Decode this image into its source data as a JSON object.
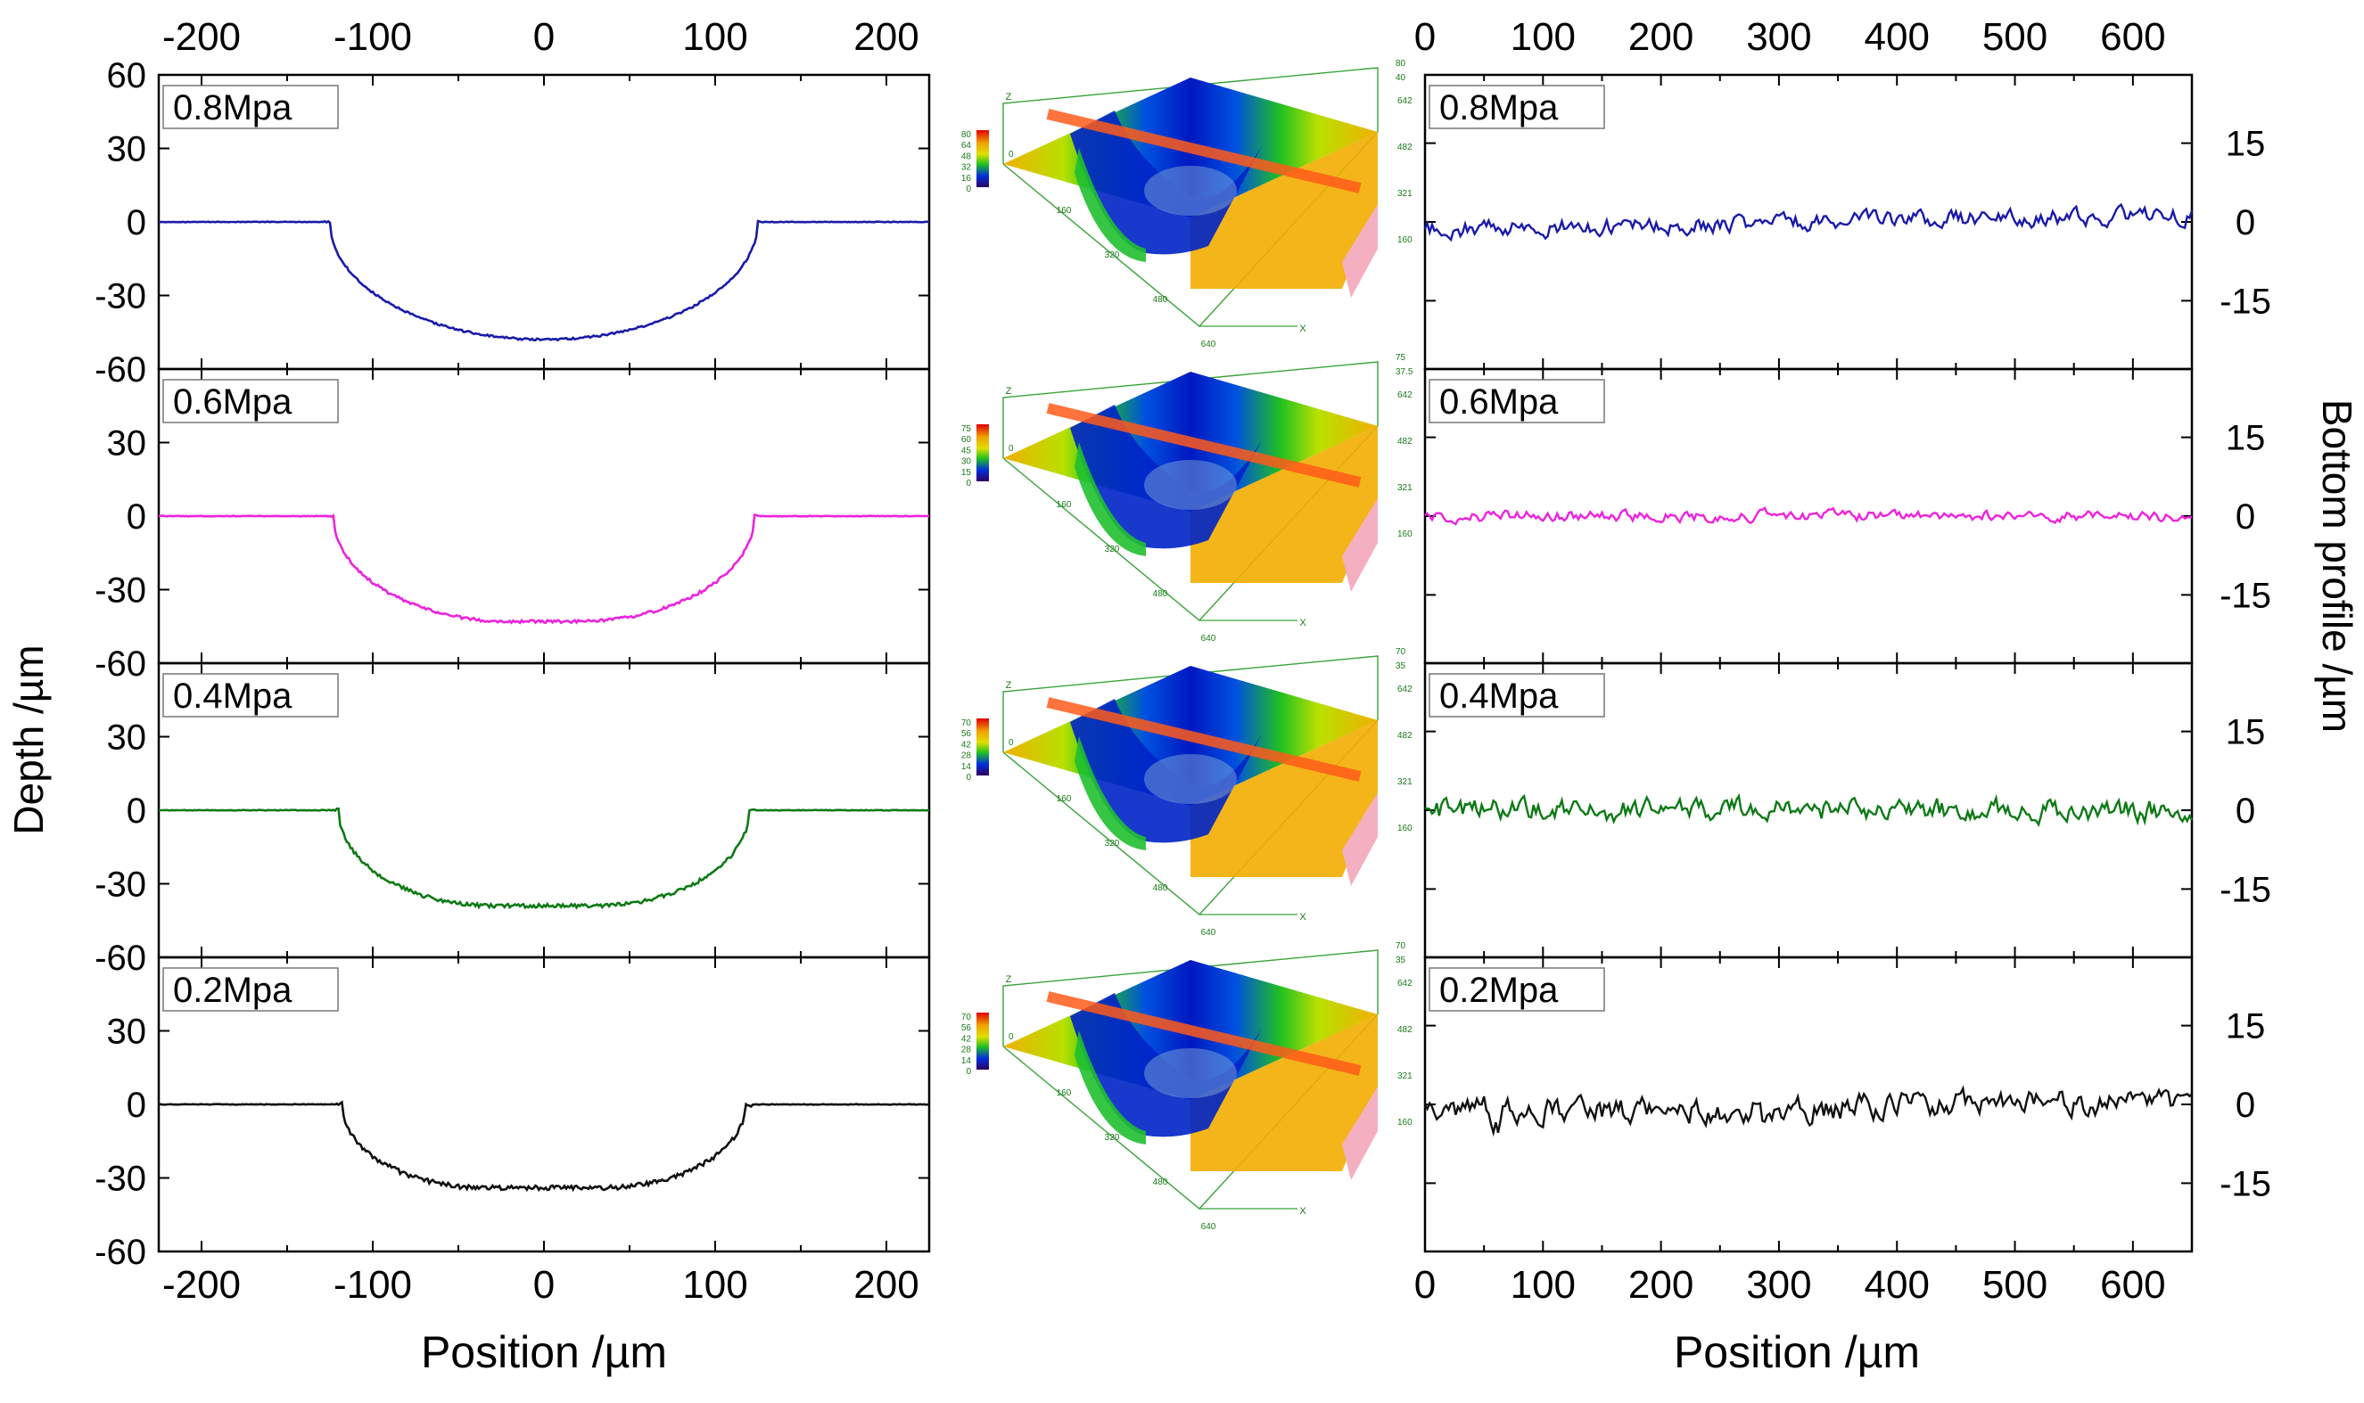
{
  "chart_data": {
    "type": "line",
    "figure": "Groove depth profiles and bottom profiles at four pressures",
    "panels": [
      {
        "label": "0.8Mpa",
        "color": "#1a1aaa",
        "shape": {
          "top_half": 125,
          "bot_half": 0,
          "depth": 48
        }
      },
      {
        "label": "0.6Mpa",
        "color": "#ee22dd",
        "shape": {
          "top_half": 123,
          "bot_half": 20,
          "depth": 43
        }
      },
      {
        "label": "0.4Mpa",
        "color": "#0e7a16",
        "shape": {
          "top_half": 120,
          "bot_half": 30,
          "depth": 39
        }
      },
      {
        "label": "0.2Mpa",
        "color": "#111111",
        "shape": {
          "top_half": 118,
          "bot_half": 35,
          "depth": 34
        }
      }
    ],
    "left": {
      "xlabel": "Position /µm",
      "ylabel": "Depth /µm",
      "xlim": [
        -225,
        225
      ],
      "ylim": [
        -60,
        60
      ],
      "xticks": [
        -200,
        -100,
        0,
        100,
        200
      ],
      "xtick_labels": [
        "-200",
        "-100",
        "0",
        "100",
        "200"
      ],
      "yticks": [
        -60,
        -30,
        0,
        30,
        60
      ],
      "ytick_labels": [
        "-60",
        "-30",
        "0",
        "30",
        "60"
      ]
    },
    "right": {
      "xlabel": "Position /µm",
      "ylabel": "Bottom profile /µm",
      "xlim": [
        0,
        650
      ],
      "ylim": [
        -28,
        28
      ],
      "xticks": [
        0,
        100,
        200,
        300,
        400,
        500,
        600
      ],
      "xtick_labels": [
        "0",
        "100",
        "200",
        "300",
        "400",
        "500",
        "600"
      ],
      "yticks": [
        -15,
        0,
        15
      ],
      "ytick_labels": [
        "-15",
        "0",
        "15"
      ],
      "bottom_noise_amplitude": [
        1.2,
        0.8,
        1.6,
        1.8
      ]
    },
    "surface_maps": [
      {
        "colorbar_ticks": [
          "80",
          "64",
          "48",
          "32",
          "16",
          "0"
        ],
        "z_ticks": [
          "80",
          "40",
          "0"
        ],
        "y_ticks": [
          "642",
          "482",
          "321",
          "160"
        ],
        "x_ticks": [
          "160",
          "320",
          "480",
          "640"
        ],
        "x_axis": "X",
        "z_axis": "Z"
      },
      {
        "colorbar_ticks": [
          "75",
          "60",
          "45",
          "30",
          "15",
          "0"
        ],
        "z_ticks": [
          "75",
          "37.5",
          "0"
        ],
        "y_ticks": [
          "642",
          "482",
          "321",
          "160"
        ],
        "x_ticks": [
          "160",
          "320",
          "480",
          "640"
        ],
        "x_axis": "X",
        "z_axis": "Z"
      },
      {
        "colorbar_ticks": [
          "70",
          "56",
          "42",
          "28",
          "14",
          "0"
        ],
        "z_ticks": [
          "70",
          "35",
          "0"
        ],
        "y_ticks": [
          "642",
          "482",
          "321",
          "160"
        ],
        "x_ticks": [
          "160",
          "320",
          "480",
          "640"
        ],
        "x_axis": "X",
        "z_axis": "Z"
      },
      {
        "colorbar_ticks": [
          "70",
          "56",
          "42",
          "28",
          "14",
          "0"
        ],
        "z_ticks": [
          "70",
          "35",
          "0"
        ],
        "y_ticks": [
          "642",
          "482",
          "321",
          "160"
        ],
        "x_ticks": [
          "160",
          "320",
          "480",
          "640"
        ],
        "x_axis": "X",
        "z_axis": "Z"
      }
    ]
  }
}
